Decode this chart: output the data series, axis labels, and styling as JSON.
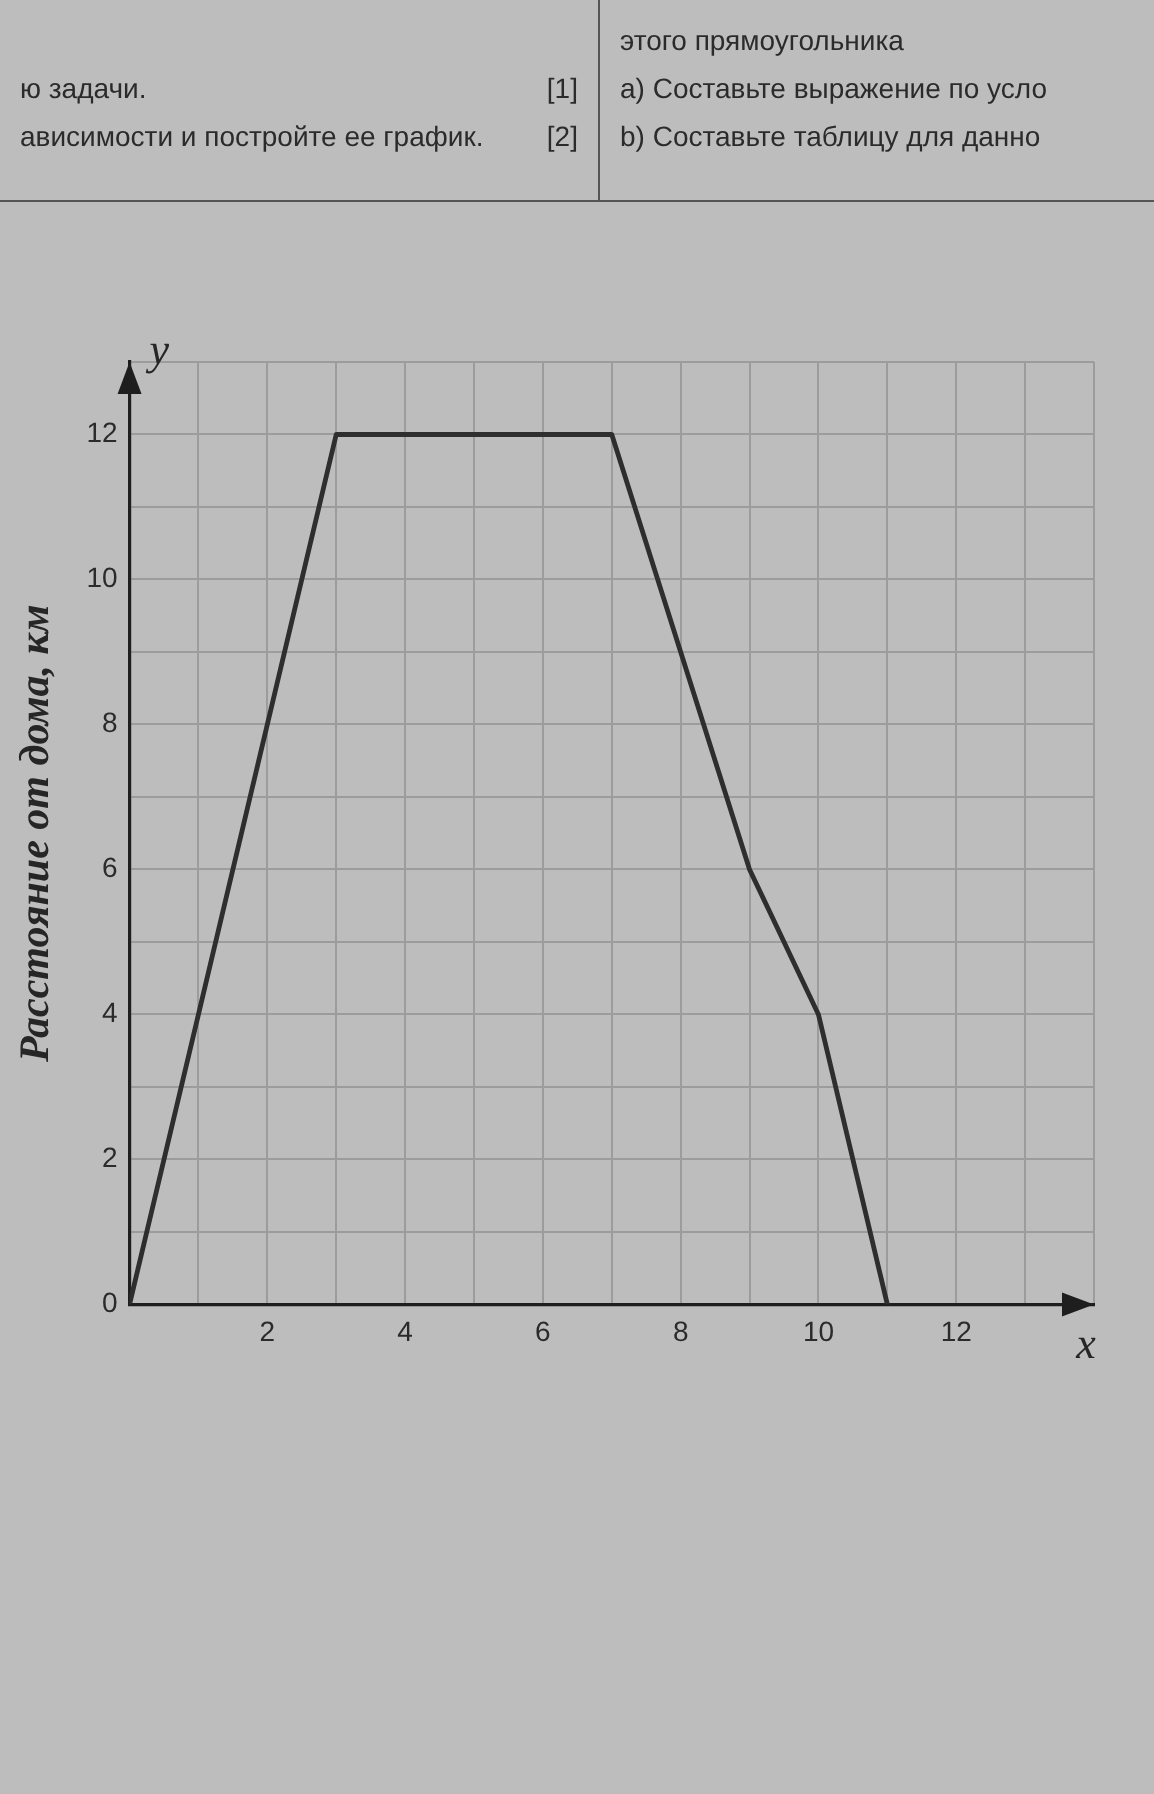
{
  "chart_data": {
    "type": "line",
    "xlabel": "x",
    "ylabel": "Расстояние от дома, км",
    "annotations": [
      "y",
      "ю задачи.",
      "[1]",
      "ависимости и постройте ее график.",
      "[2]",
      "этого прямоугольника",
      "a) Составьте выражение по усло",
      "b) Составьте таблицу для данно"
    ],
    "x": [
      0,
      3,
      7,
      9,
      10,
      11
    ],
    "values": [
      0,
      12,
      12,
      6,
      4,
      0
    ],
    "color": "#2e2e2e",
    "xlim": [
      0,
      14
    ],
    "ylim": [
      0,
      13
    ],
    "xticks": [
      {
        "value": 0,
        "label": null
      },
      {
        "value": 1,
        "label": null
      },
      2,
      {
        "value": 3,
        "label": null
      },
      4,
      {
        "value": 5,
        "label": null
      },
      6,
      {
        "value": 7,
        "label": null
      },
      8,
      {
        "value": 9,
        "label": null
      },
      10,
      {
        "value": 11,
        "label": null
      },
      12,
      {
        "value": 13,
        "label": null
      },
      {
        "value": 14,
        "label": null
      }
    ],
    "yticks": [
      0,
      {
        "value": 1,
        "label": null
      },
      2,
      {
        "value": 3,
        "label": null
      },
      4,
      {
        "value": 5,
        "label": null
      },
      6,
      {
        "value": 7,
        "label": null
      },
      8,
      {
        "value": 9,
        "label": null
      },
      10,
      {
        "value": 11,
        "label": null
      },
      12,
      {
        "value": 13,
        "label": null
      }
    ],
    "grid": true
  }
}
